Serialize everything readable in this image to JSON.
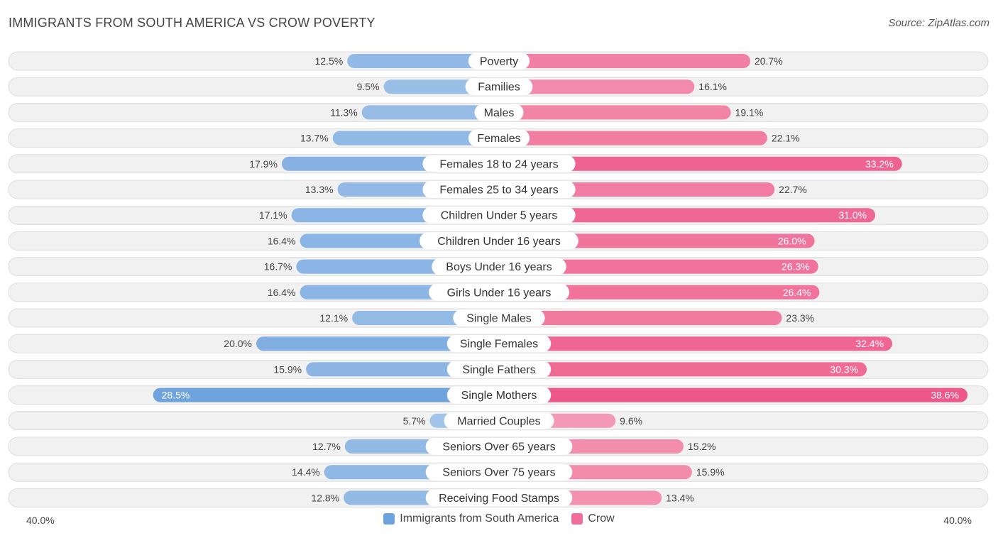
{
  "header": {
    "title": "IMMIGRANTS FROM SOUTH AMERICA VS CROW POVERTY",
    "source": "Source: ZipAtlas.com"
  },
  "axis": {
    "left_label": "40.0%",
    "right_label": "40.0%"
  },
  "legend": {
    "left_name": "Immigrants from South America",
    "right_name": "Crow",
    "left_color": "#6fa3dd",
    "right_color": "#f06e99"
  },
  "chart_data": {
    "type": "bar",
    "orientation": "horizontal-diverging",
    "title": "IMMIGRANTS FROM SOUTH AMERICA VS CROW POVERTY",
    "xlim": [
      -40,
      40
    ],
    "unit": "%",
    "categories": [
      "Poverty",
      "Families",
      "Males",
      "Females",
      "Females 18 to 24 years",
      "Females 25 to 34 years",
      "Children Under 5 years",
      "Children Under 16 years",
      "Boys Under 16 years",
      "Girls Under 16 years",
      "Single Males",
      "Single Females",
      "Single Fathers",
      "Single Mothers",
      "Married Couples",
      "Seniors Over 65 years",
      "Seniors Over 75 years",
      "Receiving Food Stamps"
    ],
    "series": [
      {
        "name": "Immigrants from South America",
        "values": [
          12.5,
          9.5,
          11.3,
          13.7,
          17.9,
          13.3,
          17.1,
          16.4,
          16.7,
          16.4,
          12.1,
          20.0,
          15.9,
          28.5,
          5.7,
          12.7,
          14.4,
          12.8
        ],
        "labels": [
          "12.5%",
          "9.5%",
          "11.3%",
          "13.7%",
          "17.9%",
          "13.3%",
          "17.1%",
          "16.4%",
          "16.7%",
          "16.4%",
          "12.1%",
          "20.0%",
          "15.9%",
          "28.5%",
          "5.7%",
          "12.7%",
          "14.4%",
          "12.8%"
        ]
      },
      {
        "name": "Crow",
        "values": [
          20.7,
          16.1,
          19.1,
          22.1,
          33.2,
          22.7,
          31.0,
          26.0,
          26.3,
          26.4,
          23.3,
          32.4,
          30.3,
          38.6,
          9.6,
          15.2,
          15.9,
          13.4
        ],
        "labels": [
          "20.7%",
          "16.1%",
          "19.1%",
          "22.1%",
          "33.2%",
          "22.7%",
          "31.0%",
          "26.0%",
          "26.3%",
          "26.4%",
          "23.3%",
          "32.4%",
          "30.3%",
          "38.6%",
          "9.6%",
          "15.2%",
          "15.9%",
          "13.4%"
        ]
      }
    ]
  }
}
